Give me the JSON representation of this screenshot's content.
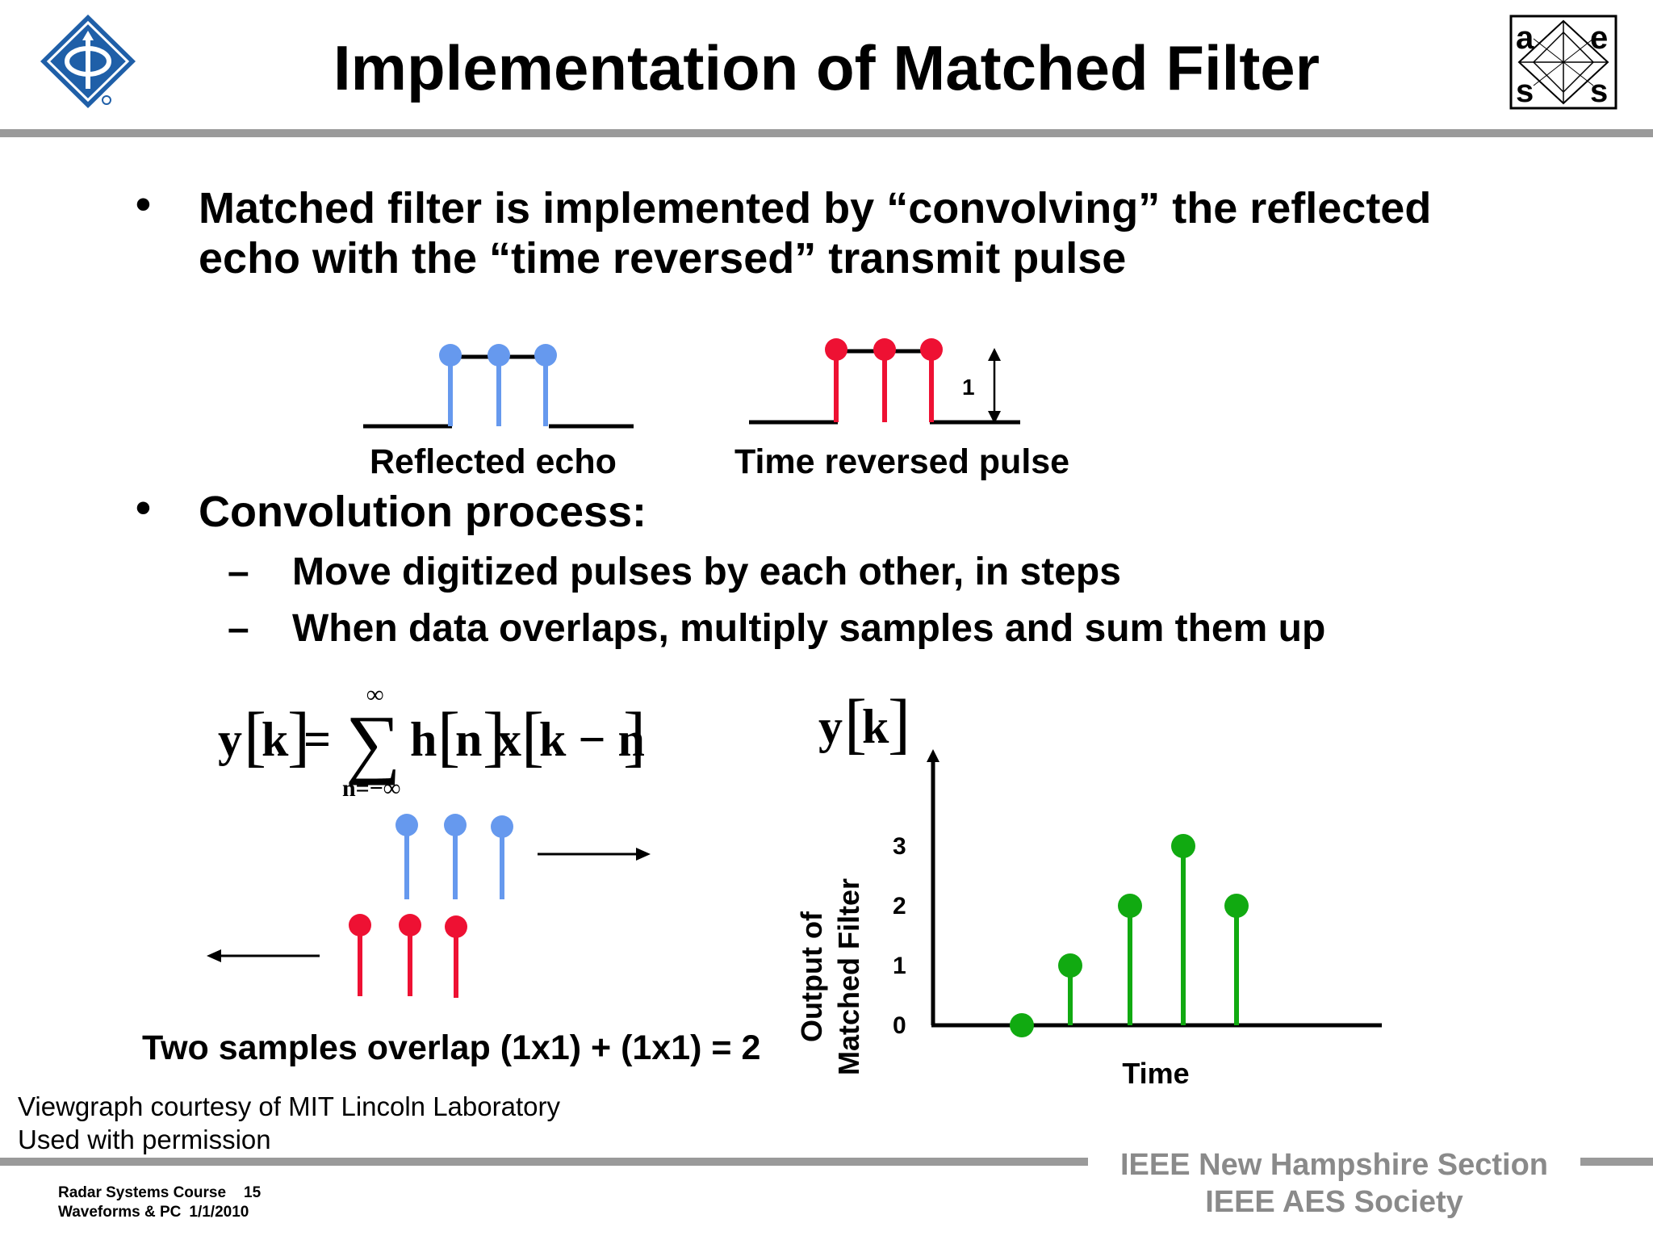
{
  "header": {
    "title": "Implementation of Matched Filter",
    "ieee_logo": "ieee-diamond-logo",
    "aes_logo": "aes-logo"
  },
  "aes_logo_letters": [
    "a",
    "e",
    "s",
    "s"
  ],
  "bullets": [
    {
      "line1": "Matched filter is implemented by “convolving” the reflected",
      "line2": "echo with the “time reversed” transmit pulse"
    },
    {
      "text": "Convolution process:",
      "subitems": [
        {
          "dash": "–",
          "text": "Move digitized pulses by  each other, in steps"
        },
        {
          "dash": "–",
          "text": "When data overlaps, multiply samples and sum them up"
        }
      ]
    }
  ],
  "pulses": {
    "reflected_label": "Reflected echo",
    "reversed_label": "Time reversed pulse",
    "amplitude_label": "1",
    "sample_amplitudes": [
      1,
      1,
      1
    ],
    "colors": {
      "echo": "#6699ee",
      "reversed": "#ee1133",
      "output": "#11aa11"
    }
  },
  "equation": {
    "lhs": "y",
    "lhs_index": "k",
    "equals": "=",
    "sum_symbol": "∑",
    "upper": "∞",
    "lower": "n=−∞",
    "h": "h",
    "h_index": "n",
    "x": "x",
    "x_index": "k − n"
  },
  "convolution_caption": "Two samples overlap (1x1) + (1x1) = 2",
  "credit": {
    "line1": "Viewgraph courtesy of MIT Lincoln Laboratory",
    "line2": "Used with permission"
  },
  "footer": {
    "course": "Radar Systems Course",
    "page": "15",
    "module": "Waveforms & PC",
    "date": "1/1/2010",
    "org1": "IEEE New Hampshire Section",
    "org2": "IEEE AES Society"
  },
  "chart_data": {
    "type": "stem",
    "title": "y[k]",
    "title_var": "y",
    "title_index": "k",
    "xlabel": "Time",
    "ylabel_line1": "Output of",
    "ylabel_line2": "Matched Filter",
    "yticks": [
      0,
      1,
      2,
      3
    ],
    "ylim": [
      0,
      3
    ],
    "values": [
      0,
      1,
      2,
      3,
      2
    ]
  }
}
